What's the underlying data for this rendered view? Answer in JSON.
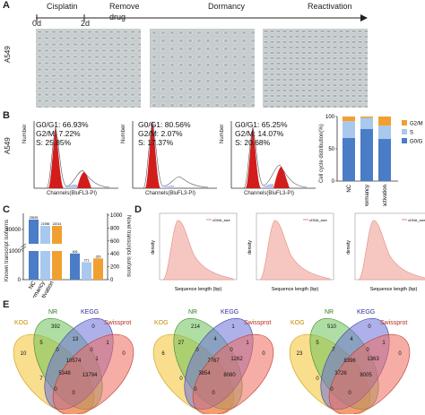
{
  "panels": [
    "A",
    "B",
    "C",
    "D",
    "E"
  ],
  "timeline": {
    "stages": [
      "Cisplatin",
      "Remove",
      "Dormancy",
      "Reactivation"
    ],
    "remove_sub": "drug",
    "ticks": [
      "0d",
      "2d"
    ]
  },
  "cell_line": "A549",
  "flow": [
    {
      "g0g1": "G0/G1: 66.93%",
      "g2m": "G2/M: 7.22%",
      "s": "S: 25.85%"
    },
    {
      "g0g1": "G0/G1: 80.56%",
      "g2m": "G2/M: 2.07%",
      "s": "S: 17.37%"
    },
    {
      "g0g1": "G0/G1: 65.25%",
      "g2m": "G2/M: 14.07%",
      "s": "S: 20.68%"
    }
  ],
  "flow_axes": {
    "x": "Channels(BluFL3-PI)",
    "y": "Number"
  },
  "chart_data": [
    {
      "type": "bar",
      "stacked": true,
      "ylabel": "Cell cycle distribution(%)",
      "ylim": [
        0,
        100
      ],
      "yticks": [
        0,
        50,
        100
      ],
      "categories": [
        "NC",
        "Dormancy",
        "Reactivation"
      ],
      "legend": "right",
      "series": [
        {
          "name": "G0/G1",
          "color": "#4a7cc7",
          "values": [
            66.93,
            80.56,
            65.25
          ]
        },
        {
          "name": "S",
          "color": "#a9c8ee",
          "values": [
            25.85,
            17.37,
            20.68
          ]
        },
        {
          "name": "G2/M",
          "color": "#f0a030",
          "values": [
            7.22,
            2.07,
            14.07
          ]
        }
      ]
    },
    {
      "type": "bar",
      "ylabel_left": "Known transcript isoforms",
      "ylabel_right": "Novel transcripts isoforms",
      "left_yticks": [
        "0",
        "1000",
        "20000"
      ],
      "right_yticks": [
        "0",
        "200",
        "400",
        "600",
        "800",
        "1000"
      ],
      "categories": [
        "NC",
        "Dormancy",
        "Reactivation"
      ],
      "groups": [
        {
          "name": "Known",
          "values": [
            25539,
            21985,
            22014
          ],
          "labels": [
            "25539",
            "21985",
            "22014"
          ],
          "colors": [
            "#4a7cc7",
            "#a9c8ee",
            "#f0a030"
          ]
        },
        {
          "name": "Novel",
          "values": [
            406,
            271,
            329
          ],
          "labels": [
            "406",
            "271",
            "329"
          ],
          "colors": [
            "#4a7cc7",
            "#a9c8ee",
            "#f0a030"
          ]
        }
      ]
    },
    {
      "type": "area",
      "xlabel": "Sequence length (bp)",
      "ylabel": "density",
      "legend_label": "cDNA_size",
      "count": 3
    }
  ],
  "venn": {
    "set_names": [
      "KOG",
      "NR",
      "KEGG",
      "Swissprot"
    ],
    "diagrams": [
      {
        "kog_only": "10",
        "nr_only": "392",
        "kegg_only": "0",
        "swiss_only": "0",
        "nr_kegg": "13",
        "kog_nr": "5",
        "nr_kegg_swiss": "0",
        "kegg_swiss": "1",
        "kog_nr_kegg": "0",
        "all": "10574",
        "nr_swiss": "5348",
        "kog_nr_swiss": "13794",
        "kog_kegg": "7",
        "kog_swiss": "0",
        "kog_kegg_swiss": "0",
        "extra": "1"
      },
      {
        "kog_only": "6",
        "nr_only": "214",
        "kegg_only": "1",
        "swiss_only": "0",
        "nr_kegg": "4",
        "kog_nr": "27",
        "nr_kegg_swiss": "0",
        "kegg_swiss": "1",
        "kog_nr_kegg": "0",
        "all": "7767",
        "nr_swiss": "3854",
        "kog_nr_swiss": "8080",
        "kog_kegg": "0",
        "kog_swiss": "0",
        "kog_kegg_swiss": "0",
        "extra": "1262"
      },
      {
        "kog_only": "23",
        "nr_only": "510",
        "kegg_only": "0",
        "swiss_only": "0",
        "nr_kegg": "4",
        "kog_nr": "5",
        "nr_kegg_swiss": "0",
        "kegg_swiss": "1",
        "kog_nr_kegg": "7",
        "all": "8396",
        "nr_swiss": "3726",
        "kog_nr_swiss": "8005",
        "kog_kegg": "0",
        "kog_swiss": "0",
        "kog_kegg_swiss": "0",
        "extra": "1363"
      }
    ]
  }
}
